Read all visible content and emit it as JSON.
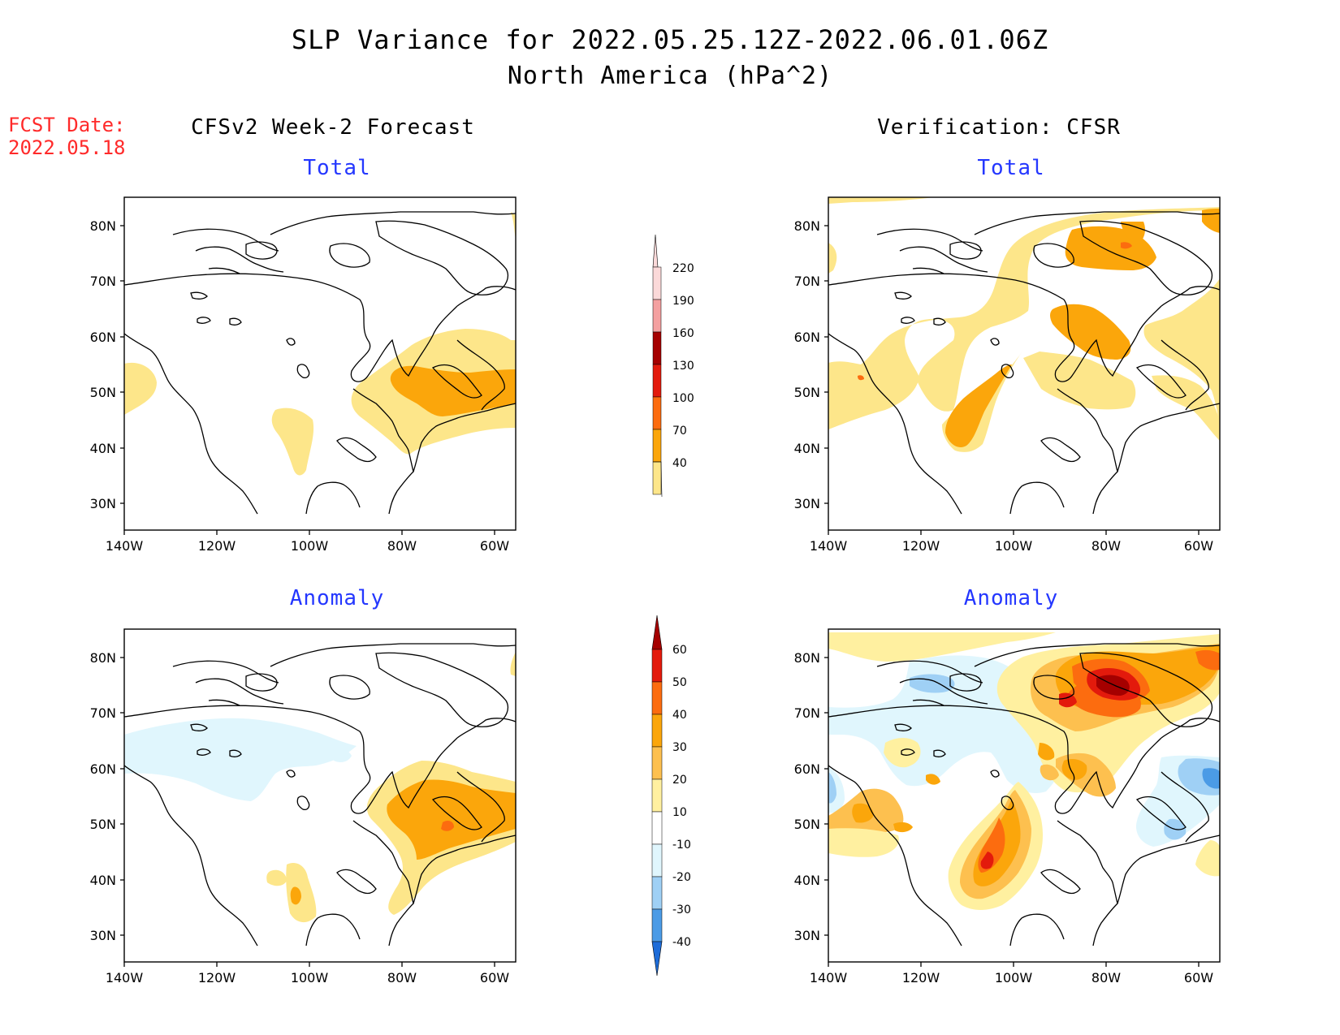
{
  "title_line1": "SLP Variance for 2022.05.25.12Z-2022.06.01.06Z",
  "title_line2": "North America (hPa^2)",
  "fcst_label": "FCST Date:",
  "fcst_date": "2022.05.18",
  "left_column_title": "CFSv2 Week-2 Forecast",
  "right_column_title": "Verification: CFSR",
  "panels": [
    {
      "id": "fcst-total",
      "title": "Total"
    },
    {
      "id": "verif-total",
      "title": "Total"
    },
    {
      "id": "fcst-anomaly",
      "title": "Anomaly"
    },
    {
      "id": "verif-anomaly",
      "title": "Anomaly"
    }
  ],
  "axes": {
    "lat_labels": [
      "80N",
      "70N",
      "60N",
      "50N",
      "40N",
      "30N"
    ],
    "lon_labels": [
      "140W",
      "120W",
      "100W",
      "80W",
      "60W"
    ]
  },
  "total_colorbar": {
    "levels": [
      "40",
      "70",
      "100",
      "130",
      "160",
      "190",
      "220"
    ],
    "colors": [
      "#fde68a",
      "#fba60b",
      "#fc6c0f",
      "#e31a0c",
      "#a50000",
      "#f4a0a0",
      "#fbd9d9"
    ]
  },
  "anomaly_colorbar": {
    "levels": [
      "-40",
      "-30",
      "-20",
      "-10",
      "10",
      "20",
      "30",
      "40",
      "50",
      "60"
    ],
    "colors": [
      "#1e6cd8",
      "#4b9be6",
      "#9fd0f5",
      "#e0f6fd",
      "#ffffff",
      "#fff0a0",
      "#fdc04f",
      "#fba60b",
      "#fc6c0f",
      "#e31a0c",
      "#a50000"
    ]
  }
}
